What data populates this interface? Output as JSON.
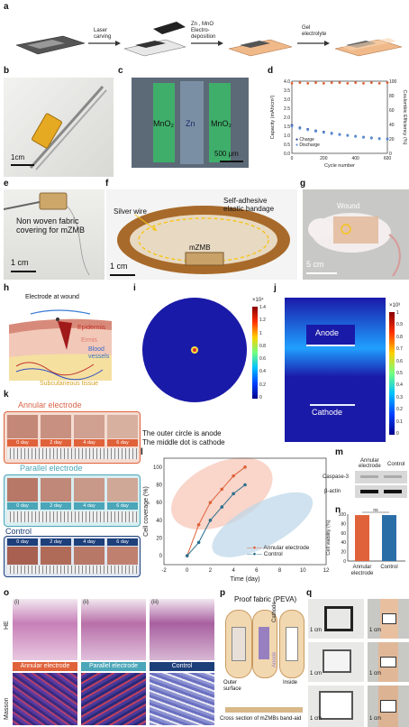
{
  "panels": {
    "a": "a",
    "b": "b",
    "c": "c",
    "d": "d",
    "e": "e",
    "f": "f",
    "g": "g",
    "h": "h",
    "i": "i",
    "j": "j",
    "k": "k",
    "l": "l",
    "m": "m",
    "n": "n",
    "o": "o",
    "p": "p",
    "q": "q"
  },
  "a": {
    "step1": "Laser\ncarving",
    "step2_line1": "Zn , MnO",
    "step2_line2": "Electro-",
    "step2_line3": "deposition",
    "step3_line1": "Gel",
    "step3_line2": "electrolyte"
  },
  "b": {
    "scale": "1cm"
  },
  "c": {
    "left": "MnO₂",
    "mid": "Zn",
    "right": "MnO₂",
    "scale": "500 μm"
  },
  "d": {
    "legend_charge": "Charge",
    "legend_discharge": "Discharge"
  },
  "chart_data": [
    {
      "type": "scatter",
      "panel": "d",
      "xlabel": "Cycle number",
      "ylabel": "Capacity (mAh/cm²)",
      "y2label": "Coulombic Efficiency (%)",
      "xlim": [
        0,
        600
      ],
      "ylim": [
        0,
        4.0
      ],
      "y2lim": [
        0,
        100
      ],
      "xticks": [
        "0",
        "200",
        "400",
        "600"
      ],
      "yticks": [
        "0.0",
        "0.5",
        "1.0",
        "1.5",
        "2.0",
        "2.5",
        "3.0",
        "3.5",
        "4.0"
      ],
      "y2ticks": [
        "0",
        "20",
        "40",
        "60",
        "80",
        "100"
      ],
      "series": [
        {
          "name": "Charge",
          "color": "#1f3c88",
          "x": [
            0,
            50,
            100,
            150,
            200,
            250,
            300,
            350,
            400,
            450,
            500,
            550,
            600
          ],
          "y": [
            1.55,
            1.42,
            1.33,
            1.25,
            1.18,
            1.12,
            1.05,
            1.0,
            0.95,
            0.9,
            0.86,
            0.82,
            0.8
          ]
        },
        {
          "name": "Discharge",
          "color": "#5b8fd6",
          "x": [
            0,
            50,
            100,
            150,
            200,
            250,
            300,
            350,
            400,
            450,
            500,
            550,
            600
          ],
          "y": [
            1.5,
            1.38,
            1.3,
            1.22,
            1.15,
            1.09,
            1.03,
            0.98,
            0.93,
            0.88,
            0.84,
            0.8,
            0.78
          ]
        },
        {
          "name": "Coulombic Efficiency",
          "color": "#e0623a",
          "x": [
            0,
            50,
            100,
            150,
            200,
            250,
            300,
            350,
            400,
            450,
            500,
            550,
            600
          ],
          "y": [
            97,
            98,
            97,
            98,
            97,
            98,
            98,
            97,
            98,
            97,
            98,
            97,
            98
          ]
        }
      ]
    },
    {
      "type": "line",
      "panel": "l",
      "xlabel": "Time (day)",
      "ylabel": "Cell coverage (%)",
      "xlim": [
        -2,
        12
      ],
      "ylim": [
        -10,
        110
      ],
      "xticks": [
        "-2",
        "0",
        "2",
        "4",
        "6",
        "8",
        "10",
        "12"
      ],
      "yticks": [
        "0",
        "20",
        "40",
        "60",
        "80",
        "100"
      ],
      "series": [
        {
          "name": "Annular electrode",
          "color": "#e0623a",
          "x": [
            0,
            1,
            2,
            3,
            4,
            5
          ],
          "y": [
            0,
            35,
            60,
            75,
            90,
            100
          ]
        },
        {
          "name": "Control",
          "color": "#2d6f8e",
          "x": [
            0,
            1,
            2,
            3,
            4,
            5
          ],
          "y": [
            0,
            15,
            40,
            55,
            70,
            80
          ]
        }
      ]
    },
    {
      "type": "bar",
      "panel": "n",
      "ylabel": "Cell viability (%)",
      "categories": [
        "Annular electrode",
        "Control"
      ],
      "values": [
        98,
        98
      ],
      "colors": [
        "#e0623a",
        "#2a6ea8"
      ],
      "ylim": [
        0,
        100
      ],
      "yticks": [
        "0",
        "20",
        "40",
        "60",
        "80",
        "100"
      ],
      "annotation": "ns"
    }
  ],
  "e": {
    "label_line1": "Non woven fabric",
    "label_line2": "covering for mZMB",
    "scale": "1 cm"
  },
  "f": {
    "silver": "Silver wire",
    "band_line1": "Self-adhesive",
    "band_line2": "elastic bandage",
    "mzmb": "mZMB",
    "scale": "1 cm"
  },
  "g": {
    "wound": "Wound",
    "scale": "5 cm"
  },
  "h": {
    "electrode": "Electrode at wound",
    "epidermis": "Epidermis",
    "ermis": "Ermis",
    "blood_line1": "Blood",
    "blood_line2": "vessels",
    "subcutaneous": "Subcutaneous tissue"
  },
  "i": {
    "exp": "×10⁴",
    "cbar": [
      "1.4",
      "1.2",
      "1",
      "0.8",
      "0.6",
      "0.4",
      "0.2",
      "0"
    ],
    "caption_line1": "The outer circle is anode",
    "caption_line2": "The middle dot is cathode"
  },
  "j": {
    "exp": "×10³",
    "cbar": [
      "1",
      "0.9",
      "0.8",
      "0.7",
      "0.6",
      "0.5",
      "0.4",
      "0.3",
      "0.2",
      "0.1",
      "0"
    ],
    "anode": "Anode",
    "cathode": "Cathode"
  },
  "k": {
    "annular": "Annular electrode",
    "parallel": "Parallel electrode",
    "control": "Control",
    "days": [
      "0 day",
      "2 day",
      "4 day",
      "6 day"
    ]
  },
  "l": {
    "legend_annular": "Annular electrode",
    "legend_control": "Control"
  },
  "m": {
    "col1_line1": "Annular",
    "col1_line2": "electrode",
    "col2": "Control",
    "row1": "Caspase-3",
    "row2": "β-actin"
  },
  "n": {
    "cat1_line1": "Annular",
    "cat1_line2": "electrode",
    "cat2": "Control"
  },
  "o": {
    "row1": "HE",
    "row2": "Masson",
    "sub1": "(i)",
    "sub2": "(ii)",
    "sub3": "(iii)",
    "c1": "Annular electrode",
    "c2": "Parallel electrode",
    "c3": "Control"
  },
  "p": {
    "title": "Proof fabric (PEVA)",
    "cathode": "Cathode",
    "anode": "Anode",
    "outer_line1": "Outer",
    "outer_line2": "surface",
    "inside": "Inside",
    "cross": "Cross section of mZMBs band-aid"
  },
  "q": {
    "scale": "1 cm"
  }
}
